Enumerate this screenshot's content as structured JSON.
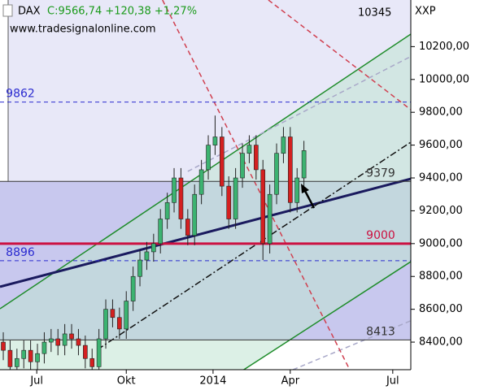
{
  "chart_data": {
    "type": "candlestick",
    "symbol": "DAX",
    "quote": "C:9566,74 +120,38 +1,27%",
    "last_label": "10345",
    "exchange": "XXP",
    "watermark": "www.tradesignalonline.com",
    "x": [
      0,
      1,
      2,
      3,
      4,
      5,
      6,
      7,
      8,
      9,
      10,
      11,
      12,
      13,
      14,
      15,
      16,
      17,
      18,
      19,
      20,
      21,
      22,
      23,
      24,
      25,
      26,
      27,
      28,
      29,
      30,
      31,
      32,
      33,
      34,
      35,
      36,
      37,
      38,
      39,
      40,
      41,
      42,
      43,
      44
    ],
    "open": [
      8400,
      8350,
      8250,
      8300,
      8350,
      8280,
      8330,
      8400,
      8420,
      8380,
      8450,
      8420,
      8380,
      8300,
      8250,
      8420,
      8600,
      8550,
      8480,
      8650,
      8800,
      8900,
      8950,
      9000,
      9150,
      9250,
      9400,
      9150,
      9050,
      9300,
      9450,
      9600,
      9650,
      9350,
      9150,
      9400,
      9550,
      9600,
      9450,
      9000,
      9300,
      9550,
      9650,
      9250,
      9400
    ],
    "high": [
      8460,
      8410,
      8360,
      8410,
      8410,
      8390,
      8460,
      8480,
      8480,
      8510,
      8510,
      8480,
      8440,
      8360,
      8480,
      8660,
      8660,
      8610,
      8710,
      8860,
      8960,
      9010,
      9060,
      9210,
      9310,
      9460,
      9460,
      9210,
      9360,
      9510,
      9660,
      9780,
      9710,
      9410,
      9460,
      9610,
      9660,
      9660,
      9510,
      9360,
      9610,
      9710,
      9710,
      9460,
      9626
    ],
    "low": [
      8290,
      8190,
      8190,
      8240,
      8220,
      8220,
      8270,
      8340,
      8320,
      8320,
      8360,
      8320,
      8240,
      8190,
      8190,
      8360,
      8490,
      8420,
      8420,
      8590,
      8740,
      8840,
      8890,
      8940,
      9090,
      9190,
      9090,
      8990,
      8990,
      9240,
      9390,
      9540,
      9290,
      9090,
      9090,
      9340,
      9490,
      9390,
      8900,
      8940,
      9240,
      9490,
      9190,
      9190,
      9340
    ],
    "close": [
      8350,
      8250,
      8300,
      8350,
      8280,
      8330,
      8400,
      8420,
      8380,
      8450,
      8420,
      8380,
      8300,
      8250,
      8420,
      8600,
      8550,
      8480,
      8650,
      8800,
      8900,
      8950,
      9000,
      9150,
      9250,
      9400,
      9150,
      9050,
      9300,
      9450,
      9600,
      9650,
      9350,
      9150,
      9400,
      9550,
      9600,
      9450,
      9000,
      9300,
      9550,
      9650,
      9250,
      9400,
      9566.74
    ],
    "up_color": "#3cb371",
    "down_color": "#d42020",
    "xlim": [
      -0.48,
      59.64
    ],
    "xticks": [
      {
        "value": 4.9,
        "label": "Jul"
      },
      {
        "value": 18,
        "label": "Okt"
      },
      {
        "value": 30.7,
        "label": "2014"
      },
      {
        "value": 42,
        "label": "Apr"
      },
      {
        "value": 57,
        "label": "Jul"
      }
    ],
    "ylim": [
      8232,
      10484
    ],
    "yticks": [
      {
        "value": 8400,
        "label": "8400,00"
      },
      {
        "value": 8600,
        "label": "8600,00"
      },
      {
        "value": 8800,
        "label": "8800,00"
      },
      {
        "value": 9000,
        "label": "9000,00"
      },
      {
        "value": 9200,
        "label": "9200,00"
      },
      {
        "value": 9400,
        "label": "9400,00"
      },
      {
        "value": 9600,
        "label": "9600,00"
      },
      {
        "value": 9800,
        "label": "9800,00"
      },
      {
        "value": 10000,
        "label": "10000,00"
      },
      {
        "value": 10200,
        "label": "10200,00"
      }
    ],
    "levels": [
      {
        "value": 9862,
        "color": "#2a2ad0",
        "style": "dashed",
        "side": "left"
      },
      {
        "value": 9379,
        "color": "#333333",
        "style": "solid",
        "side": "right"
      },
      {
        "value": 9000,
        "color": "#cc1040",
        "style": "thick",
        "side": "right"
      },
      {
        "value": 8896,
        "color": "#2a2ad0",
        "style": "dashed",
        "side": "left"
      },
      {
        "value": 8413,
        "color": "#333333",
        "style": "solid",
        "side": "right"
      }
    ],
    "trendlines": [
      {
        "color": "#1e8c2a",
        "style": "solid",
        "x": [
          -0.48,
          59.64
        ],
        "values": [
          8603,
          10276
        ]
      },
      {
        "color": "#1e8c2a",
        "style": "solid",
        "x": [
          35.2,
          59.64
        ],
        "values": [
          8232,
          8890
        ]
      },
      {
        "color": "#1a1a5e",
        "style": "thick",
        "x": [
          -0.48,
          59.64
        ],
        "values": [
          8737,
          9395
        ]
      },
      {
        "color": "#111111",
        "style": "dashdot",
        "x": [
          13.8,
          59.64
        ],
        "values": [
          8355,
          9618
        ]
      },
      {
        "color": "#a8a8c8",
        "style": "dashed",
        "x": [
          27,
          59.64
        ],
        "values": [
          9440,
          10140
        ]
      },
      {
        "color": "#a8a8c8",
        "style": "dashed",
        "x": [
          42.4,
          59.64
        ],
        "values": [
          8232,
          8530
        ]
      },
      {
        "color": "#d04050",
        "style": "dashed",
        "x": [
          23.3,
          50.7
        ],
        "values": [
          10484,
          8232
        ]
      },
      {
        "color": "#d04050",
        "style": "dashed",
        "x": [
          38.8,
          59.64
        ],
        "values": [
          10484,
          9816
        ]
      }
    ]
  }
}
